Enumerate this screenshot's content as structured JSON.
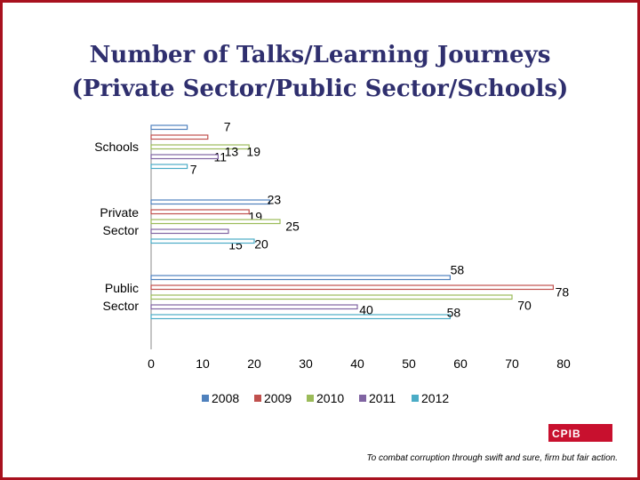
{
  "slide": {
    "title_line1": "Number of Talks/Learning Journeys",
    "title_line2": "(Private Sector/Public Sector/Schools)",
    "logo_text": "CPIB",
    "motto": "To combat corruption through swift and sure, firm but fair action."
  },
  "chart_data": {
    "type": "bar",
    "orientation": "horizontal",
    "categories": [
      "Schools",
      "Private Sector",
      "Public Sector"
    ],
    "series": [
      {
        "name": "2008",
        "color": "#4f81bd",
        "values": [
          7,
          23,
          58
        ]
      },
      {
        "name": "2009",
        "color": "#c0504d",
        "values": [
          11,
          19,
          78
        ]
      },
      {
        "name": "2010",
        "color": "#9bbb59",
        "values": [
          19,
          25,
          70
        ]
      },
      {
        "name": "2011",
        "color": "#8064a2",
        "values": [
          13,
          15,
          40
        ]
      },
      {
        "name": "2012",
        "color": "#4bacc6",
        "values": [
          7,
          20,
          58
        ]
      }
    ],
    "xlim": [
      0,
      80
    ],
    "xticks": [
      0,
      10,
      20,
      30,
      40,
      50,
      60,
      70,
      80
    ],
    "legend_position": "bottom",
    "grid": false
  }
}
